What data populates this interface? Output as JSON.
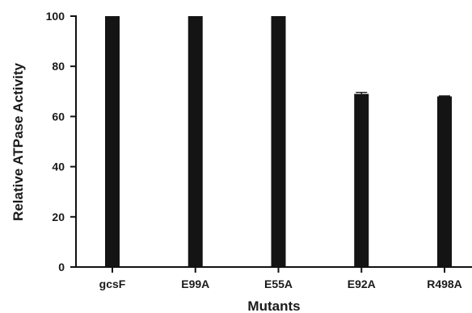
{
  "chart_data": {
    "type": "bar",
    "categories": [
      "gcsF",
      "E99A",
      "E55A",
      "E92A",
      "R498A"
    ],
    "values": [
      100,
      100,
      100,
      69,
      68
    ],
    "errors": [
      0,
      0,
      0,
      0.6,
      0.2
    ],
    "xlabel": "Mutants",
    "ylabel": "Relative ATPase Activity",
    "ylim": [
      0,
      100
    ],
    "yticks": [
      0,
      20,
      40,
      60,
      80,
      100
    ],
    "grid": false,
    "legend": "none",
    "bar_color": "#141414"
  }
}
